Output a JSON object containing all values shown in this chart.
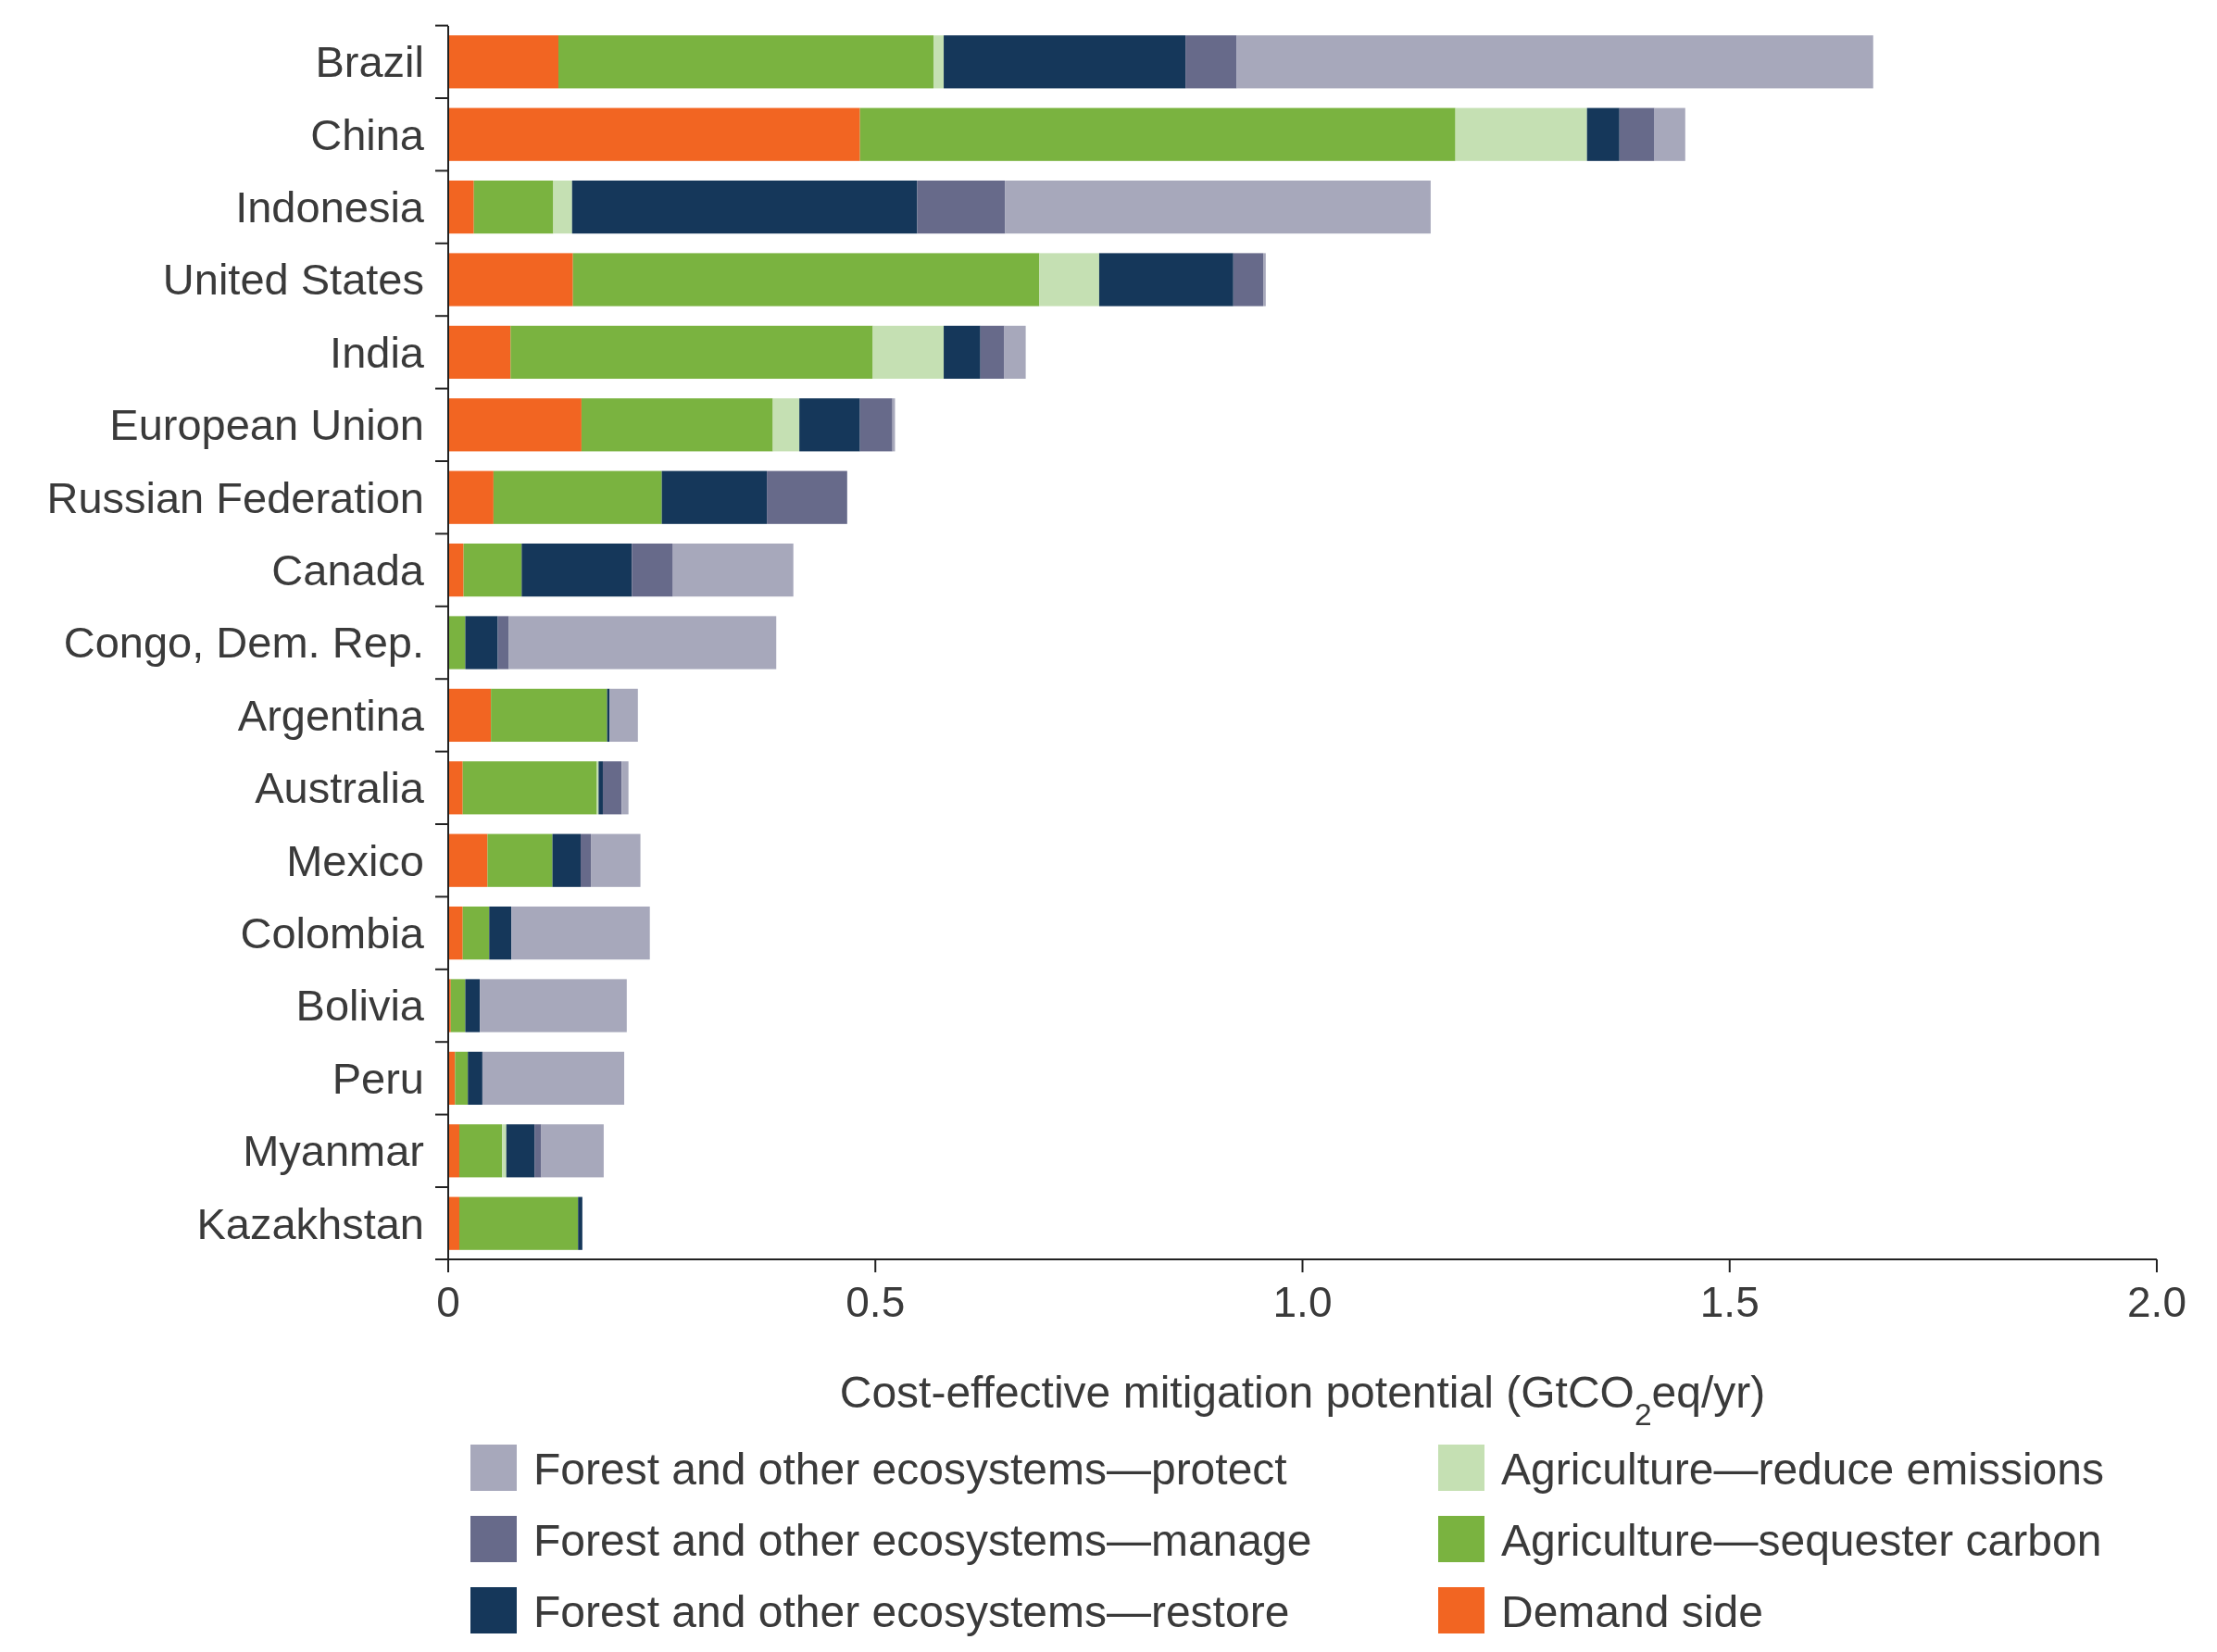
{
  "chart_data": {
    "type": "bar",
    "orientation": "horizontal",
    "stacked": true,
    "xlabel": "Cost-effective mitigation potential (GtCO$_{2}$eq/yr)",
    "categories": [
      "Brazil",
      "China",
      "Indonesia",
      "United States",
      "India",
      "European Union",
      "Russian Federation",
      "Canada",
      "Congo, Dem. Rep.",
      "Argentina",
      "Australia",
      "Mexico",
      "Colombia",
      "Bolivia",
      "Peru",
      "Myanmar",
      "Kazakhstan"
    ],
    "xlim": [
      0,
      2
    ],
    "xticks": [
      0,
      0.5,
      {
        "value": 1,
        "label": "1.0"
      },
      1.5,
      {
        "value": 2,
        "label": "2.0"
      }
    ],
    "grid": false,
    "legend": "bottom",
    "series": [
      {
        "name": "Demand side",
        "color": "#f26522",
        "values": [
          0.129,
          0.482,
          0.03,
          0.146,
          0.073,
          0.156,
          0.053,
          0.018,
          null,
          0.05,
          0.017,
          0.046,
          0.017,
          0.003,
          0.008,
          0.013,
          0.013
        ]
      },
      {
        "name": "Agriculture—sequester carbon",
        "color": "#7ab340",
        "values": [
          0.439,
          0.697,
          0.093,
          0.546,
          0.424,
          0.224,
          0.197,
          0.068,
          0.02,
          0.136,
          0.157,
          0.076,
          0.031,
          0.017,
          0.015,
          0.05,
          0.139
        ]
      },
      {
        "name": "Agriculture—reduce emissions",
        "color": "#c5e0b3",
        "values": [
          0.012,
          0.154,
          0.022,
          0.07,
          0.083,
          0.031,
          null,
          null,
          null,
          null,
          0.002,
          null,
          null,
          null,
          null,
          0.005,
          null
        ]
      },
      {
        "name": "Forest and other ecosystems—restore",
        "color": "#15375a",
        "values": [
          0.283,
          0.038,
          0.404,
          0.157,
          0.043,
          0.071,
          0.123,
          0.129,
          0.038,
          0.003,
          0.005,
          0.033,
          0.026,
          0.017,
          0.017,
          0.033,
          0.005
        ]
      },
      {
        "name": "Forest and other ecosystems—manage",
        "color": "#676a8a",
        "values": [
          0.06,
          0.041,
          0.103,
          0.035,
          0.028,
          0.038,
          0.094,
          0.048,
          0.013,
          null,
          0.022,
          0.012,
          null,
          null,
          null,
          0.008,
          null
        ]
      },
      {
        "name": "Forest and other ecosystems—protect",
        "color": "#a7a8bb",
        "values": [
          0.745,
          0.036,
          0.498,
          0.003,
          0.025,
          0.003,
          null,
          0.141,
          0.313,
          0.033,
          0.008,
          0.058,
          0.162,
          0.172,
          0.166,
          0.073,
          null
        ]
      }
    ]
  }
}
